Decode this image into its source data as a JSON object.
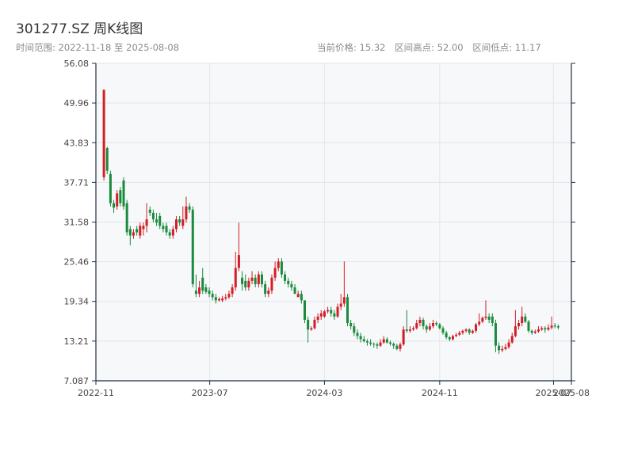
{
  "header": {
    "title": "301277.SZ 周K线图",
    "subtitle": "时间范围: 2022-11-18 至 2025-08-08",
    "stats": [
      "当前价格: 15.32",
      "区间高点: 52.00",
      "区间低点: 11.17"
    ]
  },
  "colors": {
    "up": "#d21e25",
    "down": "#1a8a3c",
    "plot_bg": "#f6f8fa",
    "grid": "#e2e6ea",
    "axis": "#1f2f44"
  },
  "chart_data": {
    "type": "candlestick",
    "title": "301277.SZ 周K线图",
    "x_ticks": [
      "2022-11",
      "2023-07",
      "2024-03",
      "2024-11",
      "2025-07",
      "2025-08"
    ],
    "x_tick_dates": [
      "2022-11-01",
      "2023-07-01",
      "2024-03-01",
      "2024-11-01",
      "2025-07-01",
      "2025-08-08"
    ],
    "y_ticks": [
      7.087,
      13.21,
      19.34,
      25.46,
      31.58,
      37.71,
      43.83,
      49.96,
      56.08
    ],
    "ylim": [
      7.087,
      56.08
    ],
    "xlim": [
      "2022-11-01",
      "2025-08-08"
    ],
    "grid": true,
    "start_date": "2022-11-18",
    "close": [
      52.0,
      39.5,
      34.5,
      33.8,
      36.0,
      34.5,
      34.0,
      30.0,
      29.5,
      30.0,
      30.0,
      31.0,
      31.0,
      32.0,
      33.0,
      32.0,
      31.5,
      31.0,
      30.5,
      30.0,
      29.5,
      30.5,
      32.0,
      31.5,
      32.0,
      34.0,
      33.5,
      22.0,
      20.5,
      21.5,
      21.0,
      20.8,
      20.5,
      20.0,
      19.5,
      19.7,
      19.8,
      20.0,
      20.5,
      21.5,
      24.5,
      26.5,
      22.0,
      21.5,
      22.5,
      23.0,
      22.0,
      23.5,
      22.0,
      20.5,
      21.0,
      23.0,
      24.5,
      25.5,
      23.5,
      22.5,
      22.0,
      21.5,
      20.5,
      20.5,
      19.5,
      16.5,
      15.0,
      15.2,
      16.5,
      17.0,
      17.5,
      17.8,
      18.0,
      17.5,
      17.0,
      18.5,
      19.0,
      20.0,
      16.0,
      15.5,
      14.5,
      14.0,
      13.5,
      13.2,
      13.0,
      12.8,
      12.7,
      12.5,
      13.0,
      13.5,
      13.0,
      12.8,
      12.5,
      12.0,
      12.7,
      15.0,
      14.8,
      15.0,
      15.2,
      16.0,
      16.5,
      15.5,
      15.0,
      15.5,
      16.0,
      15.8,
      15.2,
      14.5,
      13.8,
      13.5,
      14.0,
      14.2,
      14.5,
      14.8,
      15.0,
      14.5,
      14.8,
      15.8,
      16.2,
      16.8,
      17.0,
      16.5,
      16.0,
      12.5,
      11.8,
      12.0,
      12.3,
      13.0,
      14.0,
      15.5,
      16.0,
      17.0,
      16.2,
      14.8,
      14.5,
      14.7,
      15.0,
      15.2,
      15.0,
      15.3,
      15.6,
      15.5,
      15.32
    ],
    "bars": [
      [
        "2022-11-18",
        38.5,
        52.0,
        38.0,
        52.0
      ],
      [
        "2022-11-25",
        43.0,
        43.2,
        39.0,
        39.5
      ],
      [
        "2022-12-02",
        39.0,
        39.5,
        34.0,
        34.5
      ],
      [
        "2022-12-09",
        34.5,
        35.0,
        33.0,
        33.8
      ],
      [
        "2022-12-16",
        34.0,
        36.5,
        33.5,
        36.0
      ],
      [
        "2022-12-23",
        36.5,
        37.0,
        34.0,
        34.5
      ],
      [
        "2022-12-30",
        38.0,
        38.5,
        33.5,
        34.0
      ],
      [
        "2023-01-06",
        34.5,
        35.0,
        29.5,
        30.0
      ],
      [
        "2023-01-13",
        30.5,
        31.0,
        28.0,
        29.5
      ],
      [
        "2023-01-20",
        29.5,
        30.5,
        29.0,
        30.0
      ],
      [
        "2023-01-27",
        30.5,
        31.0,
        29.5,
        30.0
      ],
      [
        "2023-02-03",
        29.5,
        31.5,
        29.0,
        31.0
      ],
      [
        "2023-02-10",
        30.5,
        31.5,
        29.5,
        31.0
      ],
      [
        "2023-02-17",
        31.0,
        34.5,
        30.0,
        32.0
      ],
      [
        "2023-02-24",
        33.5,
        34.0,
        32.5,
        33.0
      ],
      [
        "2023-03-03",
        33.0,
        33.5,
        31.5,
        32.0
      ],
      [
        "2023-03-10",
        32.0,
        33.0,
        31.0,
        31.5
      ],
      [
        "2023-03-17",
        32.5,
        33.0,
        30.5,
        31.0
      ],
      [
        "2023-03-24",
        31.0,
        31.5,
        30.0,
        30.5
      ],
      [
        "2023-03-31",
        31.0,
        31.5,
        29.5,
        30.0
      ],
      [
        "2023-04-07",
        30.0,
        30.5,
        29.0,
        29.5
      ],
      [
        "2023-04-14",
        29.5,
        31.0,
        29.0,
        30.5
      ],
      [
        "2023-04-21",
        30.5,
        32.5,
        30.0,
        32.0
      ],
      [
        "2023-04-28",
        32.0,
        32.5,
        31.0,
        31.5
      ],
      [
        "2023-05-05",
        31.0,
        34.0,
        30.5,
        32.0
      ],
      [
        "2023-05-12",
        32.0,
        35.5,
        31.5,
        34.0
      ],
      [
        "2023-05-19",
        34.0,
        34.5,
        33.0,
        33.5
      ],
      [
        "2023-05-26",
        33.5,
        34.0,
        21.5,
        22.0
      ],
      [
        "2023-06-02",
        21.0,
        23.5,
        20.0,
        20.5
      ],
      [
        "2023-06-09",
        20.5,
        22.5,
        20.0,
        21.5
      ],
      [
        "2023-06-16",
        23.0,
        24.5,
        20.5,
        21.0
      ],
      [
        "2023-06-23",
        21.5,
        22.0,
        20.5,
        20.8
      ],
      [
        "2023-06-30",
        21.0,
        21.5,
        20.0,
        20.5
      ],
      [
        "2023-07-07",
        20.5,
        21.0,
        19.5,
        20.0
      ],
      [
        "2023-07-14",
        20.0,
        20.5,
        19.0,
        19.5
      ],
      [
        "2023-07-21",
        19.5,
        20.0,
        19.3,
        19.7
      ],
      [
        "2023-07-28",
        19.5,
        20.2,
        19.2,
        19.8
      ],
      [
        "2023-08-04",
        19.8,
        20.5,
        19.5,
        20.0
      ],
      [
        "2023-08-11",
        20.0,
        21.0,
        19.7,
        20.5
      ],
      [
        "2023-08-18",
        20.5,
        22.0,
        20.0,
        21.5
      ],
      [
        "2023-08-25",
        21.5,
        27.0,
        21.0,
        24.5
      ],
      [
        "2023-09-01",
        24.5,
        31.5,
        24.0,
        26.5
      ],
      [
        "2023-09-08",
        23.0,
        24.0,
        21.0,
        22.0
      ],
      [
        "2023-09-15",
        22.5,
        23.5,
        21.0,
        21.5
      ],
      [
        "2023-09-22",
        21.5,
        23.0,
        21.0,
        22.5
      ],
      [
        "2023-09-29",
        22.5,
        24.0,
        22.0,
        23.0
      ],
      [
        "2023-10-06",
        23.0,
        23.5,
        21.5,
        22.0
      ],
      [
        "2023-10-13",
        22.0,
        24.0,
        21.5,
        23.5
      ],
      [
        "2023-10-20",
        23.5,
        24.0,
        21.5,
        22.0
      ],
      [
        "2023-10-27",
        22.0,
        22.5,
        20.0,
        20.5
      ],
      [
        "2023-11-03",
        20.5,
        21.5,
        20.0,
        21.0
      ],
      [
        "2023-11-10",
        21.0,
        23.5,
        20.5,
        23.0
      ],
      [
        "2023-11-17",
        23.0,
        25.5,
        22.5,
        24.5
      ],
      [
        "2023-11-24",
        24.5,
        26.0,
        24.0,
        25.5
      ],
      [
        "2023-12-01",
        25.5,
        26.0,
        23.0,
        23.5
      ],
      [
        "2023-12-08",
        23.5,
        24.0,
        22.0,
        22.5
      ],
      [
        "2023-12-15",
        22.5,
        23.0,
        21.5,
        22.0
      ],
      [
        "2023-12-22",
        22.0,
        22.5,
        21.0,
        21.5
      ],
      [
        "2023-12-29",
        21.5,
        22.0,
        20.5,
        20.5
      ],
      [
        "2024-01-05",
        20.0,
        21.0,
        20.0,
        20.5
      ],
      [
        "2024-01-12",
        20.5,
        21.0,
        19.0,
        19.5
      ],
      [
        "2024-01-19",
        19.5,
        19.5,
        16.0,
        16.5
      ],
      [
        "2024-01-26",
        16.5,
        17.0,
        13.0,
        15.0
      ],
      [
        "2024-02-02",
        15.0,
        15.5,
        14.8,
        15.2
      ],
      [
        "2024-02-09",
        15.2,
        17.0,
        15.0,
        16.5
      ],
      [
        "2024-02-16",
        16.5,
        17.5,
        16.0,
        17.0
      ],
      [
        "2024-02-23",
        17.0,
        18.0,
        16.5,
        17.5
      ],
      [
        "2024-03-01",
        17.0,
        18.0,
        16.8,
        17.8
      ],
      [
        "2024-03-08",
        17.8,
        18.5,
        17.5,
        18.0
      ],
      [
        "2024-03-15",
        18.0,
        18.5,
        17.0,
        17.5
      ],
      [
        "2024-03-22",
        17.5,
        18.0,
        16.5,
        17.0
      ],
      [
        "2024-03-29",
        17.0,
        19.0,
        16.8,
        18.5
      ],
      [
        "2024-04-05",
        18.5,
        20.5,
        18.0,
        19.0
      ],
      [
        "2024-04-12",
        19.0,
        25.5,
        18.5,
        20.0
      ],
      [
        "2024-04-19",
        20.0,
        20.5,
        15.5,
        16.0
      ],
      [
        "2024-04-26",
        16.0,
        16.5,
        15.0,
        15.5
      ],
      [
        "2024-05-03",
        15.5,
        16.0,
        14.0,
        14.5
      ],
      [
        "2024-05-10",
        14.5,
        15.0,
        13.5,
        14.0
      ],
      [
        "2024-05-17",
        14.0,
        14.5,
        13.0,
        13.5
      ],
      [
        "2024-05-24",
        13.5,
        14.0,
        13.0,
        13.2
      ],
      [
        "2024-05-31",
        13.2,
        13.5,
        12.5,
        13.0
      ],
      [
        "2024-06-07",
        13.0,
        13.5,
        12.5,
        12.8
      ],
      [
        "2024-06-14",
        12.8,
        13.0,
        12.2,
        12.7
      ],
      [
        "2024-06-21",
        12.7,
        13.0,
        12.0,
        12.5
      ],
      [
        "2024-06-28",
        12.5,
        13.5,
        12.3,
        13.0
      ],
      [
        "2024-07-05",
        13.0,
        14.0,
        12.8,
        13.5
      ],
      [
        "2024-07-12",
        13.5,
        13.8,
        12.8,
        13.0
      ],
      [
        "2024-07-19",
        13.0,
        13.3,
        12.5,
        12.8
      ],
      [
        "2024-07-26",
        12.8,
        13.0,
        12.0,
        12.5
      ],
      [
        "2024-08-02",
        12.5,
        12.8,
        11.8,
        12.0
      ],
      [
        "2024-08-09",
        12.0,
        13.0,
        11.6,
        12.7
      ],
      [
        "2024-08-16",
        12.7,
        15.5,
        12.5,
        15.0
      ],
      [
        "2024-08-23",
        15.0,
        18.0,
        14.5,
        14.8
      ],
      [
        "2024-08-30",
        14.8,
        15.5,
        14.5,
        15.0
      ],
      [
        "2024-09-06",
        15.0,
        15.5,
        14.8,
        15.2
      ],
      [
        "2024-09-13",
        15.2,
        16.5,
        15.0,
        16.0
      ],
      [
        "2024-09-20",
        16.0,
        17.0,
        15.5,
        16.5
      ],
      [
        "2024-09-27",
        16.5,
        16.8,
        15.0,
        15.5
      ],
      [
        "2024-10-04",
        15.5,
        15.8,
        14.5,
        15.0
      ],
      [
        "2024-10-11",
        15.0,
        16.0,
        14.8,
        15.5
      ],
      [
        "2024-10-18",
        15.5,
        16.5,
        15.2,
        16.0
      ],
      [
        "2024-10-25",
        16.0,
        16.3,
        15.5,
        15.8
      ],
      [
        "2024-11-01",
        15.8,
        16.0,
        15.0,
        15.2
      ],
      [
        "2024-11-08",
        15.2,
        15.5,
        14.2,
        14.5
      ],
      [
        "2024-11-15",
        14.5,
        14.8,
        13.5,
        13.8
      ],
      [
        "2024-11-22",
        13.8,
        14.0,
        13.2,
        13.5
      ],
      [
        "2024-11-29",
        13.5,
        14.2,
        13.3,
        14.0
      ],
      [
        "2024-12-06",
        14.0,
        14.5,
        13.8,
        14.2
      ],
      [
        "2024-12-13",
        14.2,
        14.8,
        14.0,
        14.5
      ],
      [
        "2024-12-20",
        14.5,
        15.0,
        14.2,
        14.8
      ],
      [
        "2024-12-27",
        14.8,
        15.2,
        14.5,
        15.0
      ],
      [
        "2025-01-03",
        15.0,
        15.2,
        14.2,
        14.5
      ],
      [
        "2025-01-10",
        14.5,
        15.0,
        14.3,
        14.8
      ],
      [
        "2025-01-17",
        14.8,
        16.0,
        14.5,
        15.8
      ],
      [
        "2025-01-24",
        15.8,
        17.5,
        15.5,
        16.2
      ],
      [
        "2025-01-31",
        16.2,
        17.0,
        16.0,
        16.8
      ],
      [
        "2025-02-07",
        16.8,
        19.5,
        16.5,
        17.0
      ],
      [
        "2025-02-14",
        17.0,
        17.5,
        16.0,
        16.5
      ],
      [
        "2025-02-21",
        17.0,
        17.5,
        15.5,
        16.0
      ],
      [
        "2025-02-28",
        16.0,
        16.5,
        11.5,
        12.5
      ],
      [
        "2025-03-07",
        12.5,
        13.0,
        11.2,
        11.8
      ],
      [
        "2025-03-14",
        11.8,
        12.5,
        11.5,
        12.0
      ],
      [
        "2025-03-21",
        12.0,
        12.8,
        11.8,
        12.3
      ],
      [
        "2025-03-28",
        12.3,
        13.5,
        12.0,
        13.0
      ],
      [
        "2025-04-04",
        13.0,
        14.5,
        12.8,
        14.0
      ],
      [
        "2025-04-11",
        14.0,
        18.0,
        13.8,
        15.5
      ],
      [
        "2025-04-18",
        15.5,
        16.5,
        15.0,
        16.0
      ],
      [
        "2025-04-25",
        16.0,
        18.5,
        15.5,
        17.0
      ],
      [
        "2025-05-02",
        17.0,
        17.5,
        16.0,
        16.2
      ],
      [
        "2025-05-09",
        16.2,
        16.5,
        14.5,
        14.8
      ],
      [
        "2025-05-16",
        14.8,
        15.0,
        14.2,
        14.5
      ],
      [
        "2025-05-23",
        14.5,
        15.0,
        14.3,
        14.7
      ],
      [
        "2025-05-30",
        14.7,
        15.5,
        14.5,
        15.0
      ],
      [
        "2025-06-06",
        15.0,
        15.5,
        14.8,
        15.2
      ],
      [
        "2025-06-13",
        15.2,
        15.5,
        14.5,
        15.0
      ],
      [
        "2025-06-20",
        15.0,
        15.8,
        14.8,
        15.3
      ],
      [
        "2025-06-27",
        15.3,
        17.0,
        15.0,
        15.6
      ],
      [
        "2025-07-04",
        15.6,
        16.0,
        15.2,
        15.5
      ],
      [
        "2025-07-11",
        15.5,
        15.8,
        15.0,
        15.32
      ]
    ]
  }
}
